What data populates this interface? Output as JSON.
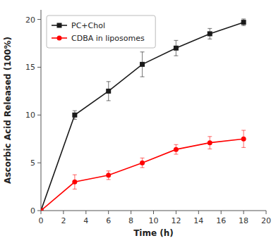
{
  "chart_data": {
    "type": "line",
    "xlabel": "Time (h)",
    "ylabel": "Ascorbic Acid Released (100%)",
    "x": [
      0,
      3,
      6,
      9,
      12,
      15,
      18
    ],
    "series": [
      {
        "name": "PC+Chol",
        "color": "#1a1a1a",
        "marker": "square",
        "values": [
          0,
          10.0,
          12.5,
          15.3,
          17.0,
          18.5,
          19.7
        ],
        "errors": [
          0,
          0.45,
          1.0,
          1.3,
          0.8,
          0.55,
          0.35
        ]
      },
      {
        "name": "CDBA in liposomes",
        "color": "#ff0000",
        "marker": "circle",
        "values": [
          0,
          3.0,
          3.7,
          5.0,
          6.4,
          7.1,
          7.5
        ],
        "errors": [
          0,
          0.75,
          0.45,
          0.5,
          0.5,
          0.65,
          0.9
        ]
      }
    ],
    "xlim": [
      0,
      20
    ],
    "ylim": [
      0,
      21
    ],
    "xticks": [
      0,
      2,
      4,
      6,
      8,
      10,
      12,
      14,
      16,
      18,
      20
    ],
    "yticks": [
      0,
      5,
      10,
      15,
      20
    ],
    "legend": "upper left"
  }
}
